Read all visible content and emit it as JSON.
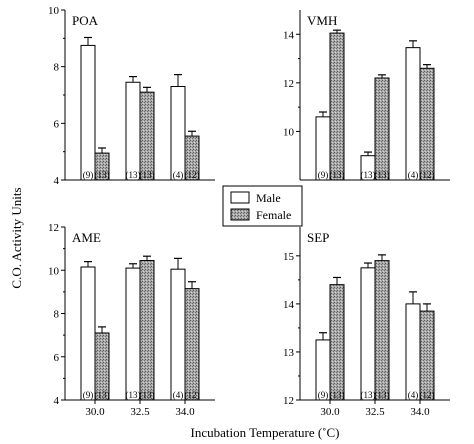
{
  "ylabel": "C.O. Activity Units",
  "xlabel": "Incubation Temperature (˚C)",
  "legend": {
    "entries": [
      "Male",
      "Female"
    ],
    "placement": "center"
  },
  "colors": {
    "male": "#ffffff",
    "female": "#a9a9a9",
    "stroke": "#000000"
  },
  "chart_data": [
    {
      "type": "bar",
      "title": "POA",
      "categories": [
        "30.0",
        "32.5",
        "34.0"
      ],
      "ylim": [
        4,
        10
      ],
      "yticks": [
        "4",
        "6",
        "8",
        "10"
      ],
      "series": [
        {
          "name": "Male",
          "values": [
            8.75,
            7.45,
            7.3
          ],
          "errors": [
            0.28,
            0.2,
            0.42
          ],
          "n": [
            "(9)",
            "(13)",
            "(4)"
          ]
        },
        {
          "name": "Female",
          "values": [
            4.95,
            7.1,
            5.55
          ],
          "errors": [
            0.18,
            0.17,
            0.17
          ],
          "n": [
            "(13)",
            "(13)",
            "(12)"
          ]
        }
      ]
    },
    {
      "type": "bar",
      "title": "VMH",
      "categories": [
        "30.0",
        "32.5",
        "34.0"
      ],
      "ylim": [
        8,
        15
      ],
      "yticks": [
        "10",
        "12",
        "14"
      ],
      "series": [
        {
          "name": "Male",
          "values": [
            10.6,
            9.0,
            13.45
          ],
          "errors": [
            0.2,
            0.15,
            0.28
          ],
          "n": [
            "(9)",
            "(13)",
            "(4)"
          ]
        },
        {
          "name": "Female",
          "values": [
            14.05,
            12.2,
            12.6
          ],
          "errors": [
            0.12,
            0.13,
            0.15
          ],
          "n": [
            "(13)",
            "(13)",
            "(12)"
          ]
        }
      ]
    },
    {
      "type": "bar",
      "title": "AME",
      "categories": [
        "30.0",
        "32.5",
        "34.0"
      ],
      "ylim": [
        4,
        12
      ],
      "yticks": [
        "4",
        "6",
        "8",
        "10",
        "12"
      ],
      "series": [
        {
          "name": "Male",
          "values": [
            10.15,
            10.1,
            10.05
          ],
          "errors": [
            0.25,
            0.2,
            0.5
          ],
          "n": [
            "(9)",
            "(13)",
            "(4)"
          ]
        },
        {
          "name": "Female",
          "values": [
            7.1,
            10.45,
            9.15
          ],
          "errors": [
            0.28,
            0.2,
            0.32
          ],
          "n": [
            "(13)",
            "(13)",
            "(12)"
          ]
        }
      ]
    },
    {
      "type": "bar",
      "title": "SEP",
      "categories": [
        "30.0",
        "32.5",
        "34.0"
      ],
      "ylim": [
        12,
        15.6
      ],
      "yticks": [
        "12",
        "13",
        "14",
        "15"
      ],
      "series": [
        {
          "name": "Male",
          "values": [
            13.25,
            14.75,
            14.0
          ],
          "errors": [
            0.15,
            0.1,
            0.25
          ],
          "n": [
            "(9)",
            "(13)",
            "(4)"
          ]
        },
        {
          "name": "Female",
          "values": [
            14.4,
            14.9,
            13.85
          ],
          "errors": [
            0.15,
            0.12,
            0.15
          ],
          "n": [
            "(13)",
            "(13)",
            "(12)"
          ]
        }
      ]
    }
  ],
  "xticks": [
    "30.0",
    "32.5",
    "34.0"
  ]
}
